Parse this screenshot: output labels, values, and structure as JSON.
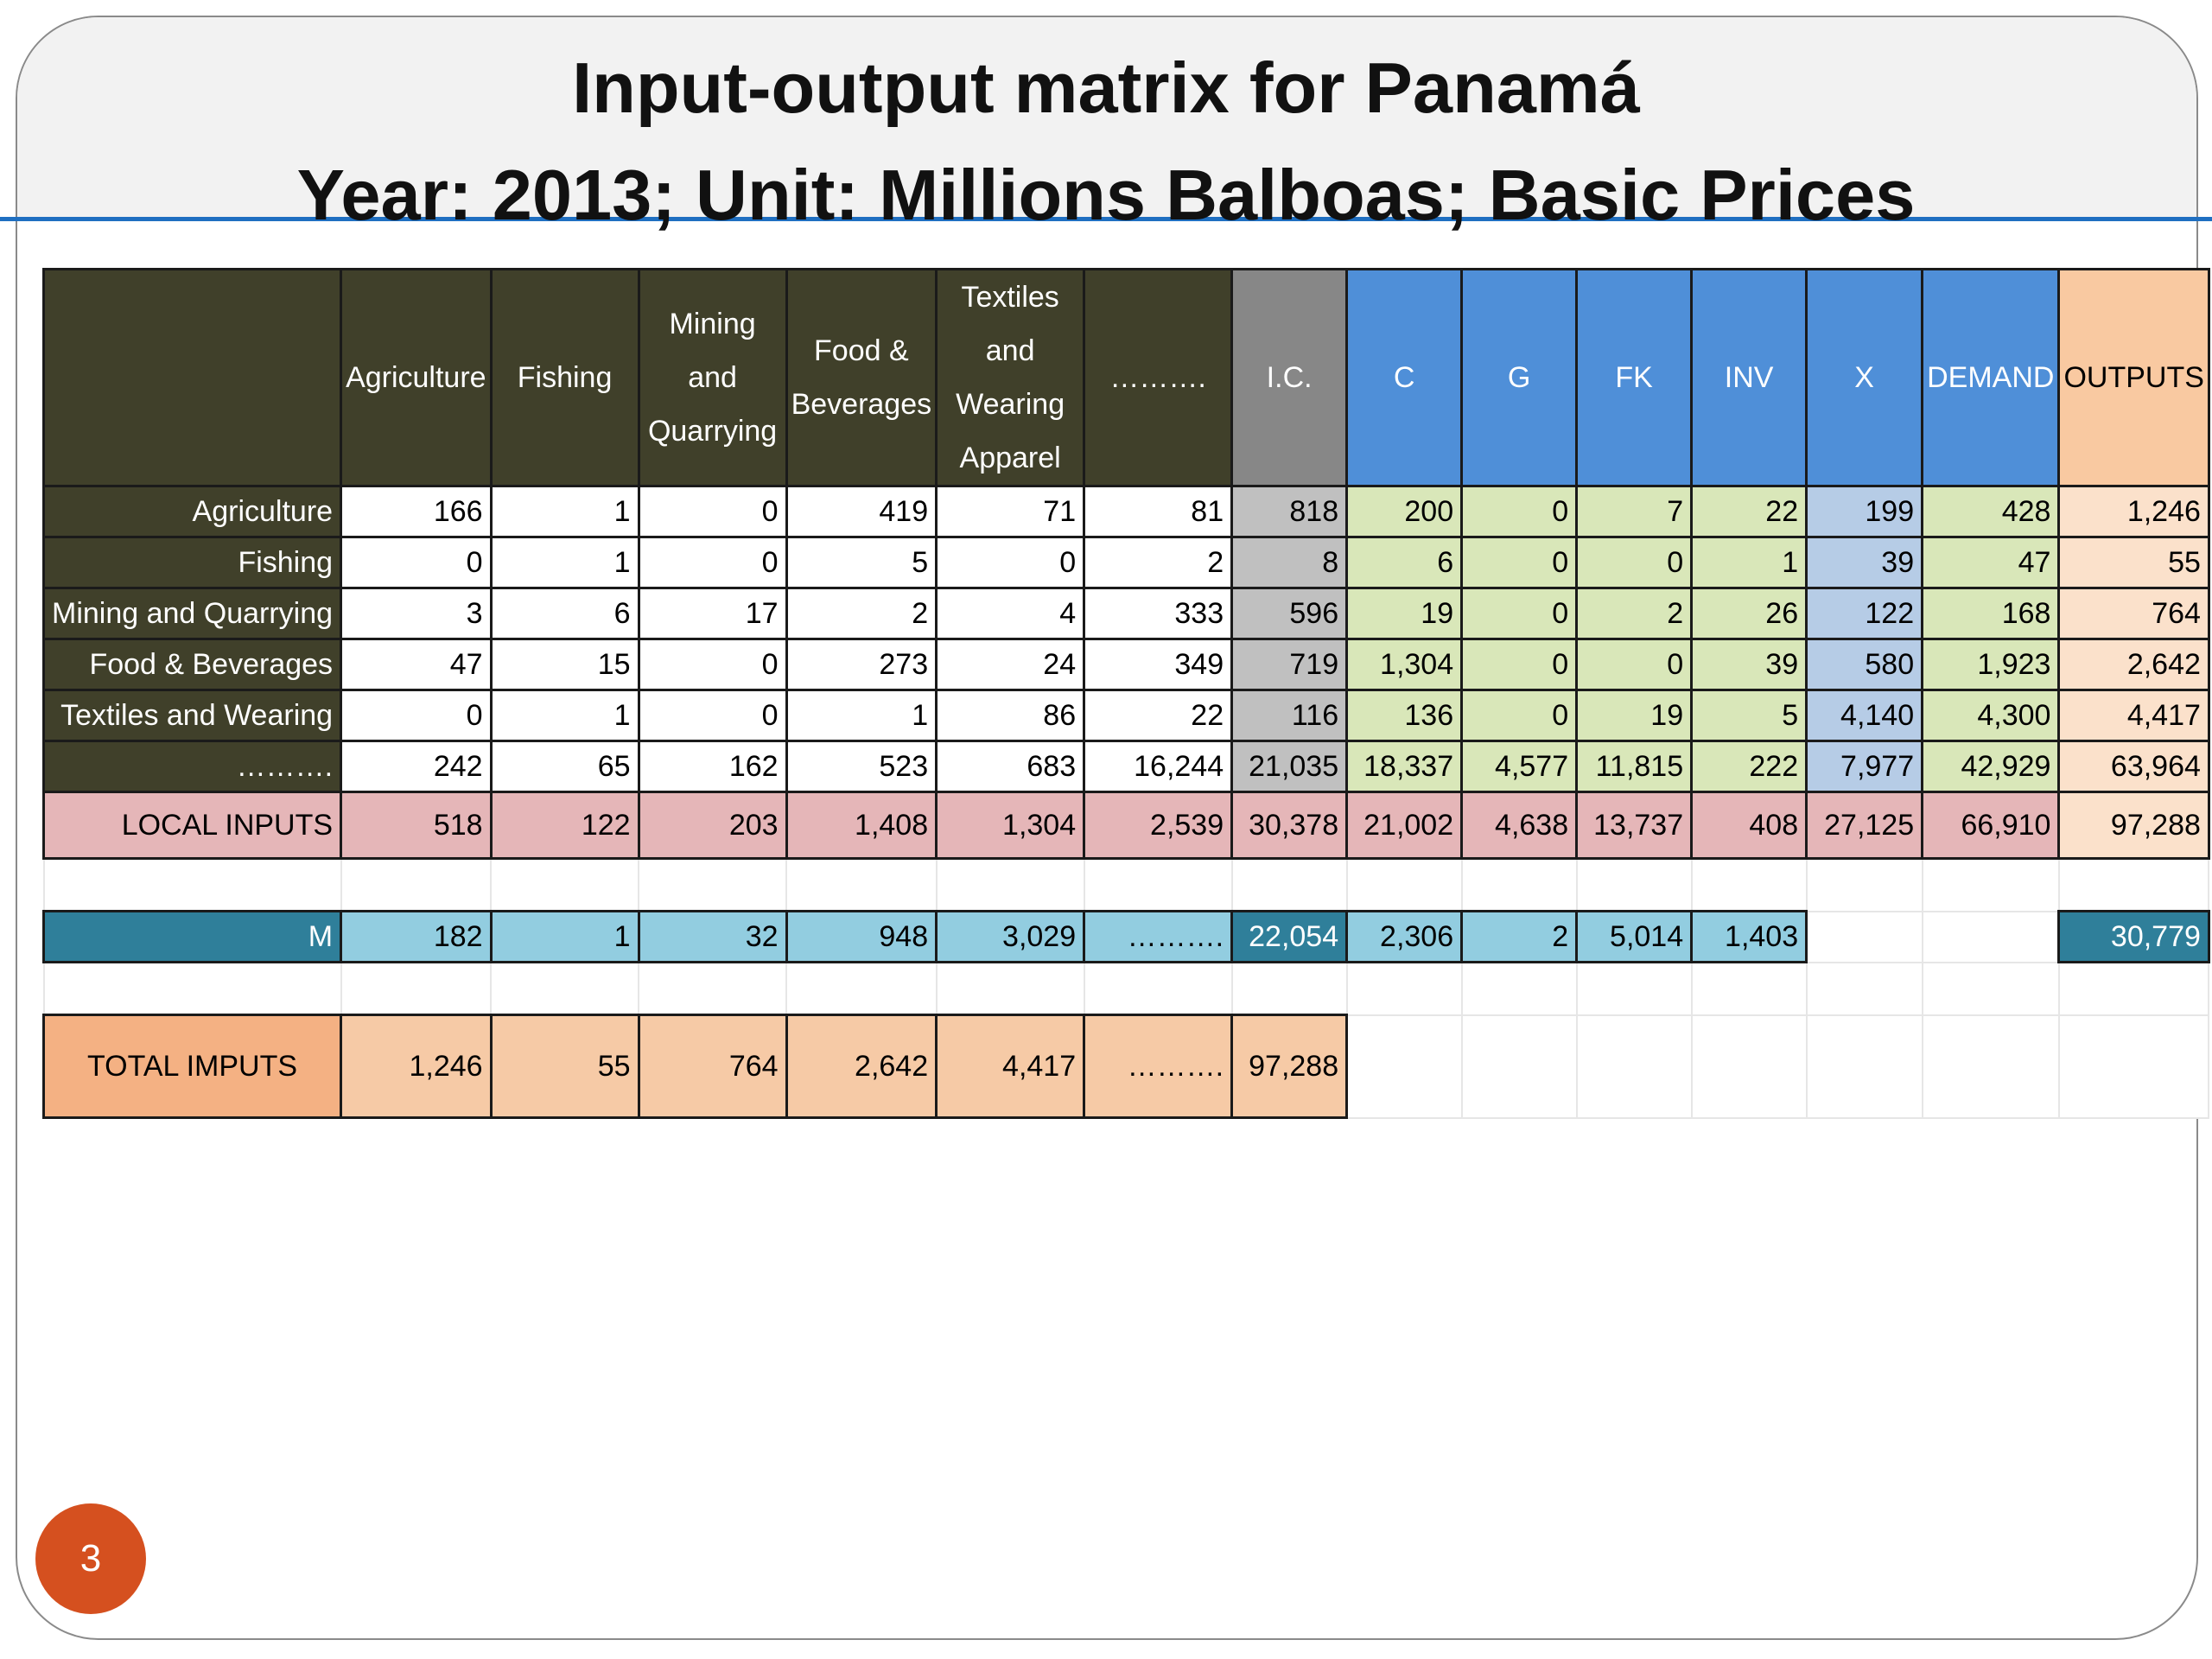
{
  "title": {
    "line1": "Input-output matrix for Panamá",
    "line2": "Year: 2013; Unit:  Millions Balboas; Basic Prices"
  },
  "table": {
    "columns": {
      "agriculture": "Agriculture",
      "fishing": "Fishing",
      "mining": "Mining and Quarrying",
      "food": "Food & Beverages",
      "textiles": "Textiles and Wearing Apparel",
      "dots": "……….",
      "ic": "I.C.",
      "c": "C",
      "g": "G",
      "fk": "FK",
      "inv": "INV",
      "x": "X",
      "demand": "DEMAND",
      "outputs": "OUTPUTS"
    },
    "rows": [
      {
        "label": "Agriculture",
        "values": [
          "166",
          "1",
          "0",
          "419",
          "71",
          "81",
          "818",
          "200",
          "0",
          "7",
          "22",
          "199",
          "428",
          "1,246"
        ]
      },
      {
        "label": "Fishing",
        "values": [
          "0",
          "1",
          "0",
          "5",
          "0",
          "2",
          "8",
          "6",
          "0",
          "0",
          "1",
          "39",
          "47",
          "55"
        ]
      },
      {
        "label": "Mining and Quarrying",
        "values": [
          "3",
          "6",
          "17",
          "2",
          "4",
          "333",
          "596",
          "19",
          "0",
          "2",
          "26",
          "122",
          "168",
          "764"
        ]
      },
      {
        "label": "Food & Beverages",
        "values": [
          "47",
          "15",
          "0",
          "273",
          "24",
          "349",
          "719",
          "1,304",
          "0",
          "0",
          "39",
          "580",
          "1,923",
          "2,642"
        ]
      },
      {
        "label": "Textiles and Wearing",
        "values": [
          "0",
          "1",
          "0",
          "1",
          "86",
          "22",
          "116",
          "136",
          "0",
          "19",
          "5",
          "4,140",
          "4,300",
          "4,417"
        ]
      },
      {
        "label": "……….",
        "values": [
          "242",
          "65",
          "162",
          "523",
          "683",
          "16,244",
          "21,035",
          "18,337",
          "4,577",
          "11,815",
          "222",
          "7,977",
          "42,929",
          "63,964"
        ]
      }
    ],
    "local_inputs": {
      "label": "LOCAL INPUTS",
      "values": [
        "518",
        "122",
        "203",
        "1,408",
        "1,304",
        "2,539",
        "30,378",
        "21,002",
        "4,638",
        "13,737",
        "408",
        "27,125",
        "66,910",
        "97,288"
      ]
    },
    "m_row": {
      "label": "M",
      "values": [
        "182",
        "1",
        "32",
        "948",
        "3,029",
        "……….",
        "22,054",
        "2,306",
        "2",
        "5,014",
        "1,403",
        "30,779"
      ]
    },
    "total_inputs": {
      "label": "TOTAL IMPUTS",
      "values": [
        "1,246",
        "55",
        "764",
        "2,642",
        "4,417",
        "……….",
        "97,288"
      ]
    }
  },
  "page_number": "3",
  "colors": {
    "header_dark": "#40402a",
    "demand_blue": "#4f8fd8",
    "outputs_peach": "#f9c9a1",
    "local_inputs_pink": "#e5b6b8",
    "m_row_cyan": "#92cde0",
    "title_rule": "#1f6fc1",
    "page_badge": "#d5501f"
  }
}
